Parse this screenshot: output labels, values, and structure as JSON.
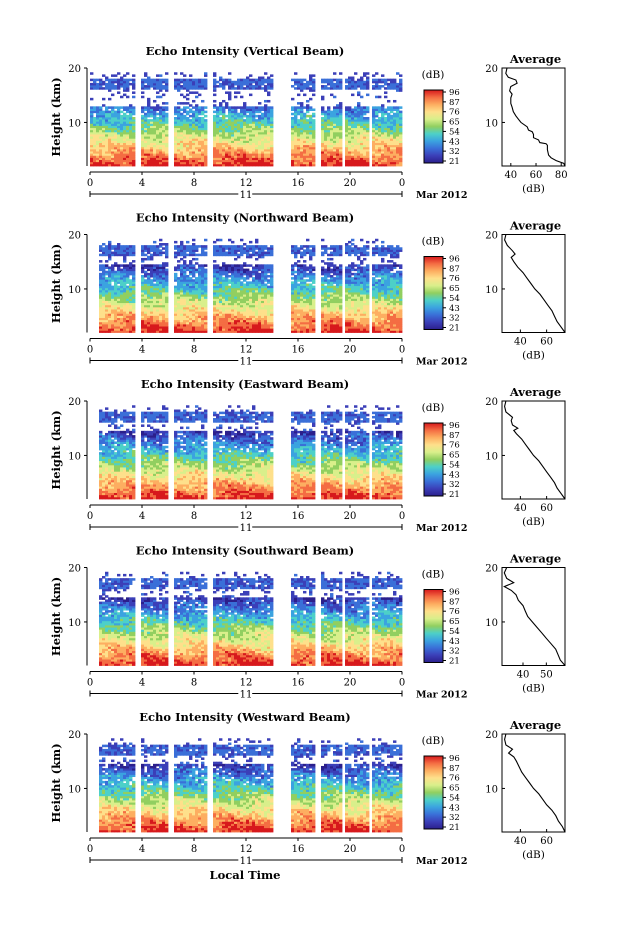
{
  "chart_data": {
    "type": "heatmap",
    "date_label": "Mar 2012",
    "day_label": "11",
    "xlabel": "Local Time",
    "ylabel": "Height (km)",
    "colorbar_unit": "(dB)",
    "colorbar_ticks": [
      "96",
      "87",
      "76",
      "65",
      "54",
      "43",
      "32",
      "21"
    ],
    "colorbar_colors": [
      "#d7191c",
      "#f46d43",
      "#fdae61",
      "#fee08b",
      "#d9ef8b",
      "#91cf60",
      "#4dd0c8",
      "#3ba3e0",
      "#3a6fd8",
      "#3b3fb8",
      "#2b1f8c"
    ],
    "x_ticks": [
      "0",
      "4",
      "8",
      "12",
      "16",
      "20",
      "0"
    ],
    "x_range_hours": [
      0,
      24
    ],
    "y_range_km": [
      2,
      20
    ],
    "y_ticks": [
      "20",
      "10"
    ],
    "gaps_hours": [
      [
        3.5,
        3.9
      ],
      [
        6.0,
        6.4
      ],
      [
        9.1,
        9.5
      ],
      [
        14.1,
        15.4
      ],
      [
        17.4,
        17.7
      ],
      [
        19.3,
        19.6
      ],
      [
        21.4,
        21.7
      ]
    ],
    "panels": [
      {
        "title": "Echo Intensity (Vertical Beam)",
        "average": {
          "title": "Average",
          "xlabel": "(dB)",
          "x_ticks": [
            "40",
            "60",
            "80"
          ],
          "x_values": [
            40,
            60,
            80
          ],
          "xlim": [
            33,
            83
          ],
          "profile": [
            [
              83,
              2
            ],
            [
              82,
              2.5
            ],
            [
              76,
              3
            ],
            [
              72,
              3.5
            ],
            [
              70,
              4
            ],
            [
              69,
              5
            ],
            [
              69,
              5.8
            ],
            [
              68,
              6.1
            ],
            [
              63,
              6.3
            ],
            [
              62,
              6.8
            ],
            [
              58,
              7.2
            ],
            [
              58,
              7.8
            ],
            [
              57,
              8.3
            ],
            [
              54,
              8.6
            ],
            [
              53,
              9.2
            ],
            [
              48,
              10
            ],
            [
              46,
              10.6
            ],
            [
              44,
              11.2
            ],
            [
              42,
              12
            ],
            [
              41,
              12.8
            ],
            [
              40,
              13.5
            ],
            [
              40,
              14.5
            ],
            [
              41,
              15.2
            ],
            [
              39,
              15.8
            ],
            [
              40,
              16.6
            ],
            [
              45,
              17.2
            ],
            [
              44,
              17.8
            ],
            [
              38,
              18.3
            ],
            [
              36,
              19
            ],
            [
              37,
              20
            ]
          ]
        }
      },
      {
        "title": "Echo Intensity (Northward Beam)",
        "average": {
          "title": "Average",
          "xlabel": "(dB)",
          "x_ticks": [
            "40",
            "60"
          ],
          "x_values": [
            40,
            60
          ],
          "xlim": [
            26,
            74
          ],
          "profile": [
            [
              74,
              2
            ],
            [
              71,
              3
            ],
            [
              68,
              4
            ],
            [
              66,
              5
            ],
            [
              64,
              6
            ],
            [
              61,
              7
            ],
            [
              58,
              8
            ],
            [
              55,
              9
            ],
            [
              51,
              10
            ],
            [
              48,
              11
            ],
            [
              45,
              12
            ],
            [
              42,
              13
            ],
            [
              38,
              14
            ],
            [
              35,
              15
            ],
            [
              33,
              15.8
            ],
            [
              36,
              16.4
            ],
            [
              34,
              17
            ],
            [
              30,
              18
            ],
            [
              28,
              19
            ],
            [
              29,
              20
            ]
          ]
        }
      },
      {
        "title": "Echo Intensity (Eastward Beam)",
        "average": {
          "title": "Average",
          "xlabel": "(dB)",
          "x_ticks": [
            "40",
            "60"
          ],
          "x_values": [
            40,
            60
          ],
          "xlim": [
            26,
            74
          ],
          "profile": [
            [
              74,
              2
            ],
            [
              71,
              3
            ],
            [
              68,
              4
            ],
            [
              66,
              5
            ],
            [
              63,
              6
            ],
            [
              60,
              7
            ],
            [
              57,
              8
            ],
            [
              54,
              9
            ],
            [
              50,
              10
            ],
            [
              47,
              11
            ],
            [
              44,
              12
            ],
            [
              41,
              13
            ],
            [
              37,
              14
            ],
            [
              35,
              14.6
            ],
            [
              38,
              15
            ],
            [
              34,
              15.6
            ],
            [
              33,
              16.4
            ],
            [
              34,
              17
            ],
            [
              29,
              18
            ],
            [
              28,
              19
            ],
            [
              29,
              20
            ]
          ]
        }
      },
      {
        "title": "Echo Intensity (Southward Beam)",
        "average": {
          "title": "Average",
          "xlabel": "(dB)",
          "x_ticks": [
            "40",
            "50"
          ],
          "x_values": [
            40,
            50
          ],
          "xlim": [
            31,
            58
          ],
          "profile": [
            [
              58,
              2
            ],
            [
              56,
              3
            ],
            [
              55,
              4
            ],
            [
              54,
              5
            ],
            [
              52,
              6
            ],
            [
              50,
              7
            ],
            [
              48,
              8
            ],
            [
              46,
              9
            ],
            [
              44,
              10
            ],
            [
              42,
              11
            ],
            [
              41,
              12
            ],
            [
              40,
              13
            ],
            [
              38,
              14
            ],
            [
              37,
              15
            ],
            [
              35,
              15.8
            ],
            [
              32,
              16.5
            ],
            [
              36,
              17.2
            ],
            [
              33,
              18
            ],
            [
              32,
              19
            ],
            [
              33,
              20
            ]
          ]
        }
      },
      {
        "title": "Echo Intensity (Westward Beam)",
        "average": {
          "title": "Average",
          "xlabel": "(dB)",
          "x_ticks": [
            "40",
            "60"
          ],
          "x_values": [
            40,
            60
          ],
          "xlim": [
            26,
            74
          ],
          "profile": [
            [
              74,
              2
            ],
            [
              72,
              3
            ],
            [
              69,
              4
            ],
            [
              67,
              5
            ],
            [
              64,
              6
            ],
            [
              60,
              7
            ],
            [
              57,
              8
            ],
            [
              54,
              9
            ],
            [
              50,
              10
            ],
            [
              47,
              11
            ],
            [
              44,
              12
            ],
            [
              41,
              13
            ],
            [
              39,
              14
            ],
            [
              37,
              15
            ],
            [
              35,
              15.8
            ],
            [
              31,
              16.5
            ],
            [
              34,
              17.2
            ],
            [
              29,
              18
            ],
            [
              28,
              19
            ],
            [
              29,
              20
            ]
          ]
        }
      }
    ]
  }
}
